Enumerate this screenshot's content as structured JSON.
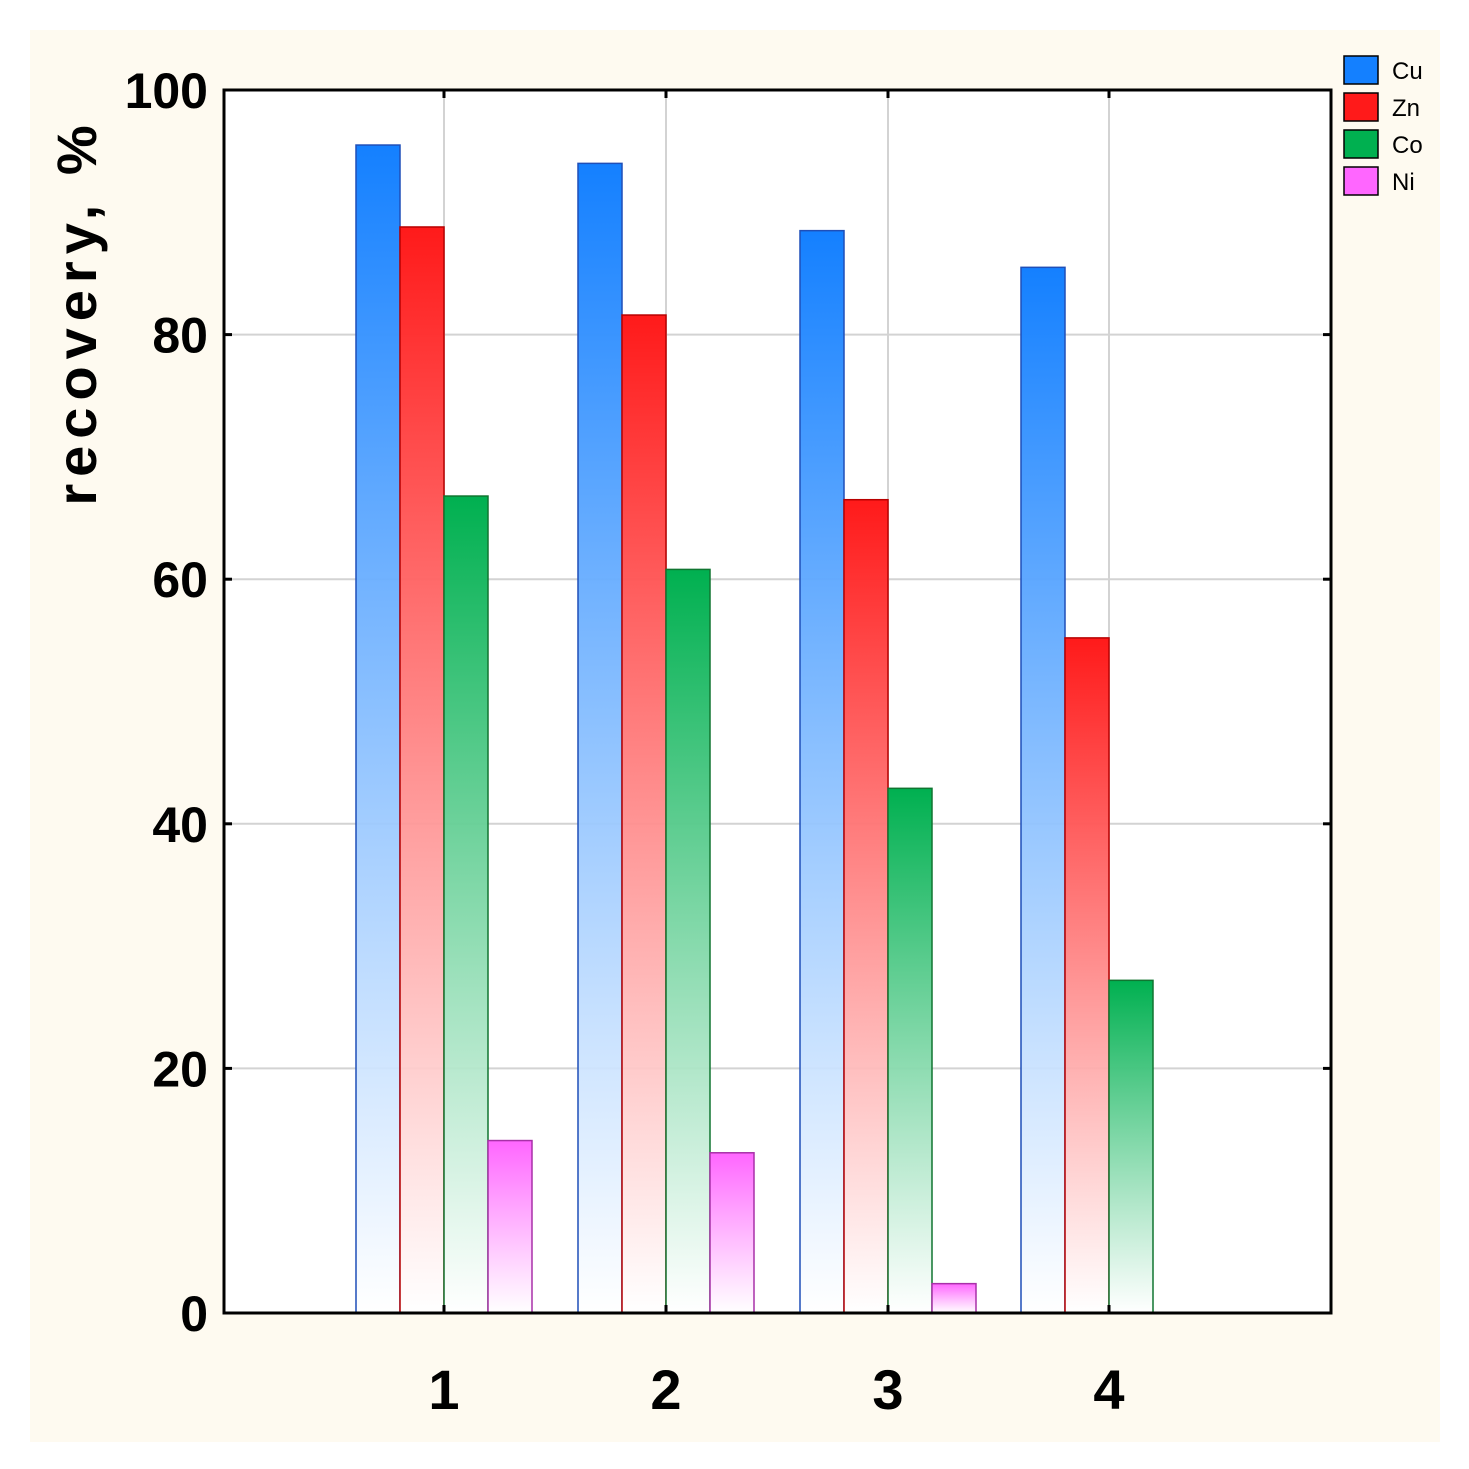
{
  "chart_data": {
    "type": "bar",
    "categories": [
      "1",
      "2",
      "3",
      "4"
    ],
    "series": [
      {
        "name": "Cu",
        "values": [
          95.5,
          94.0,
          88.5,
          85.5
        ],
        "color": "#1480ff",
        "stroke": "#1f4fb8"
      },
      {
        "name": "Zn",
        "values": [
          88.8,
          81.6,
          66.5,
          55.2
        ],
        "color": "#ff1a1a",
        "stroke": "#b80000"
      },
      {
        "name": "Co",
        "values": [
          66.8,
          60.8,
          42.9,
          27.2
        ],
        "color": "#00b050",
        "stroke": "#107530"
      },
      {
        "name": "Ni",
        "values": [
          14.1,
          13.1,
          2.4,
          0
        ],
        "color": "#ff66ff",
        "stroke": "#a830a8"
      }
    ],
    "xlabel": "",
    "ylabel": "recovery, %",
    "ylim": [
      0,
      100
    ],
    "yticks": [
      "0",
      "20",
      "40",
      "60",
      "80",
      "100"
    ],
    "grid": true,
    "legend_position": "top-right"
  }
}
